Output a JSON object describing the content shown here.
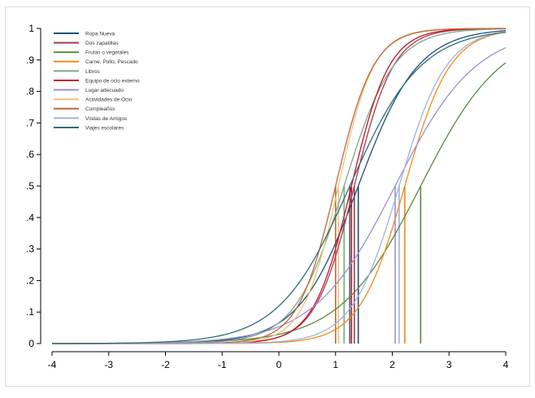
{
  "chart_data": {
    "type": "line",
    "title": "",
    "xlabel": "",
    "ylabel": "",
    "xlim": [
      -4,
      4
    ],
    "ylim": [
      0,
      1
    ],
    "xticks": [
      "-4",
      "-3",
      "-2",
      "-1",
      "0",
      "1",
      "2",
      "3",
      "4"
    ],
    "yticks": [
      "0",
      ".1",
      ".2",
      ".3",
      ".4",
      ".5",
      ".6",
      ".7",
      ".8",
      ".9",
      "1"
    ],
    "grid": false,
    "legend_position": "top-left",
    "series": [
      {
        "name": "Ropa Nueva",
        "color": "#1f4e79",
        "location": 1.4,
        "slope": 1.9
      },
      {
        "name": "Dos zapatillas",
        "color": "#a83a4a",
        "location": 1.33,
        "slope": 2.9
      },
      {
        "name": "Frutas o vegetales",
        "color": "#5a8a3c",
        "location": 2.5,
        "slope": 1.4
      },
      {
        "name": "Carne, Pollo, Pescado",
        "color": "#f08a1c",
        "location": 2.22,
        "slope": 2.5
      },
      {
        "name": "Libros",
        "color": "#7aa88a",
        "location": 1.15,
        "slope": 2.3
      },
      {
        "name": "Equipo de ocio externo",
        "color": "#c8102e",
        "location": 1.28,
        "slope": 3.0
      },
      {
        "name": "Lugar adecuado",
        "color": "#9b8fd1",
        "location": 2.05,
        "slope": 1.4
      },
      {
        "name": "Actividades de Ocio",
        "color": "#e3c77a",
        "location": 1.05,
        "slope": 3.2
      },
      {
        "name": "Cumpleaños",
        "color": "#c0653c",
        "location": 1.0,
        "slope": 3.0
      },
      {
        "name": "Visitas de Amigos",
        "color": "#9fb2d8",
        "location": 2.12,
        "slope": 2.4
      },
      {
        "name": "Viajes escolares",
        "color": "#2f6e74",
        "location": 1.25,
        "slope": 1.6
      }
    ]
  }
}
